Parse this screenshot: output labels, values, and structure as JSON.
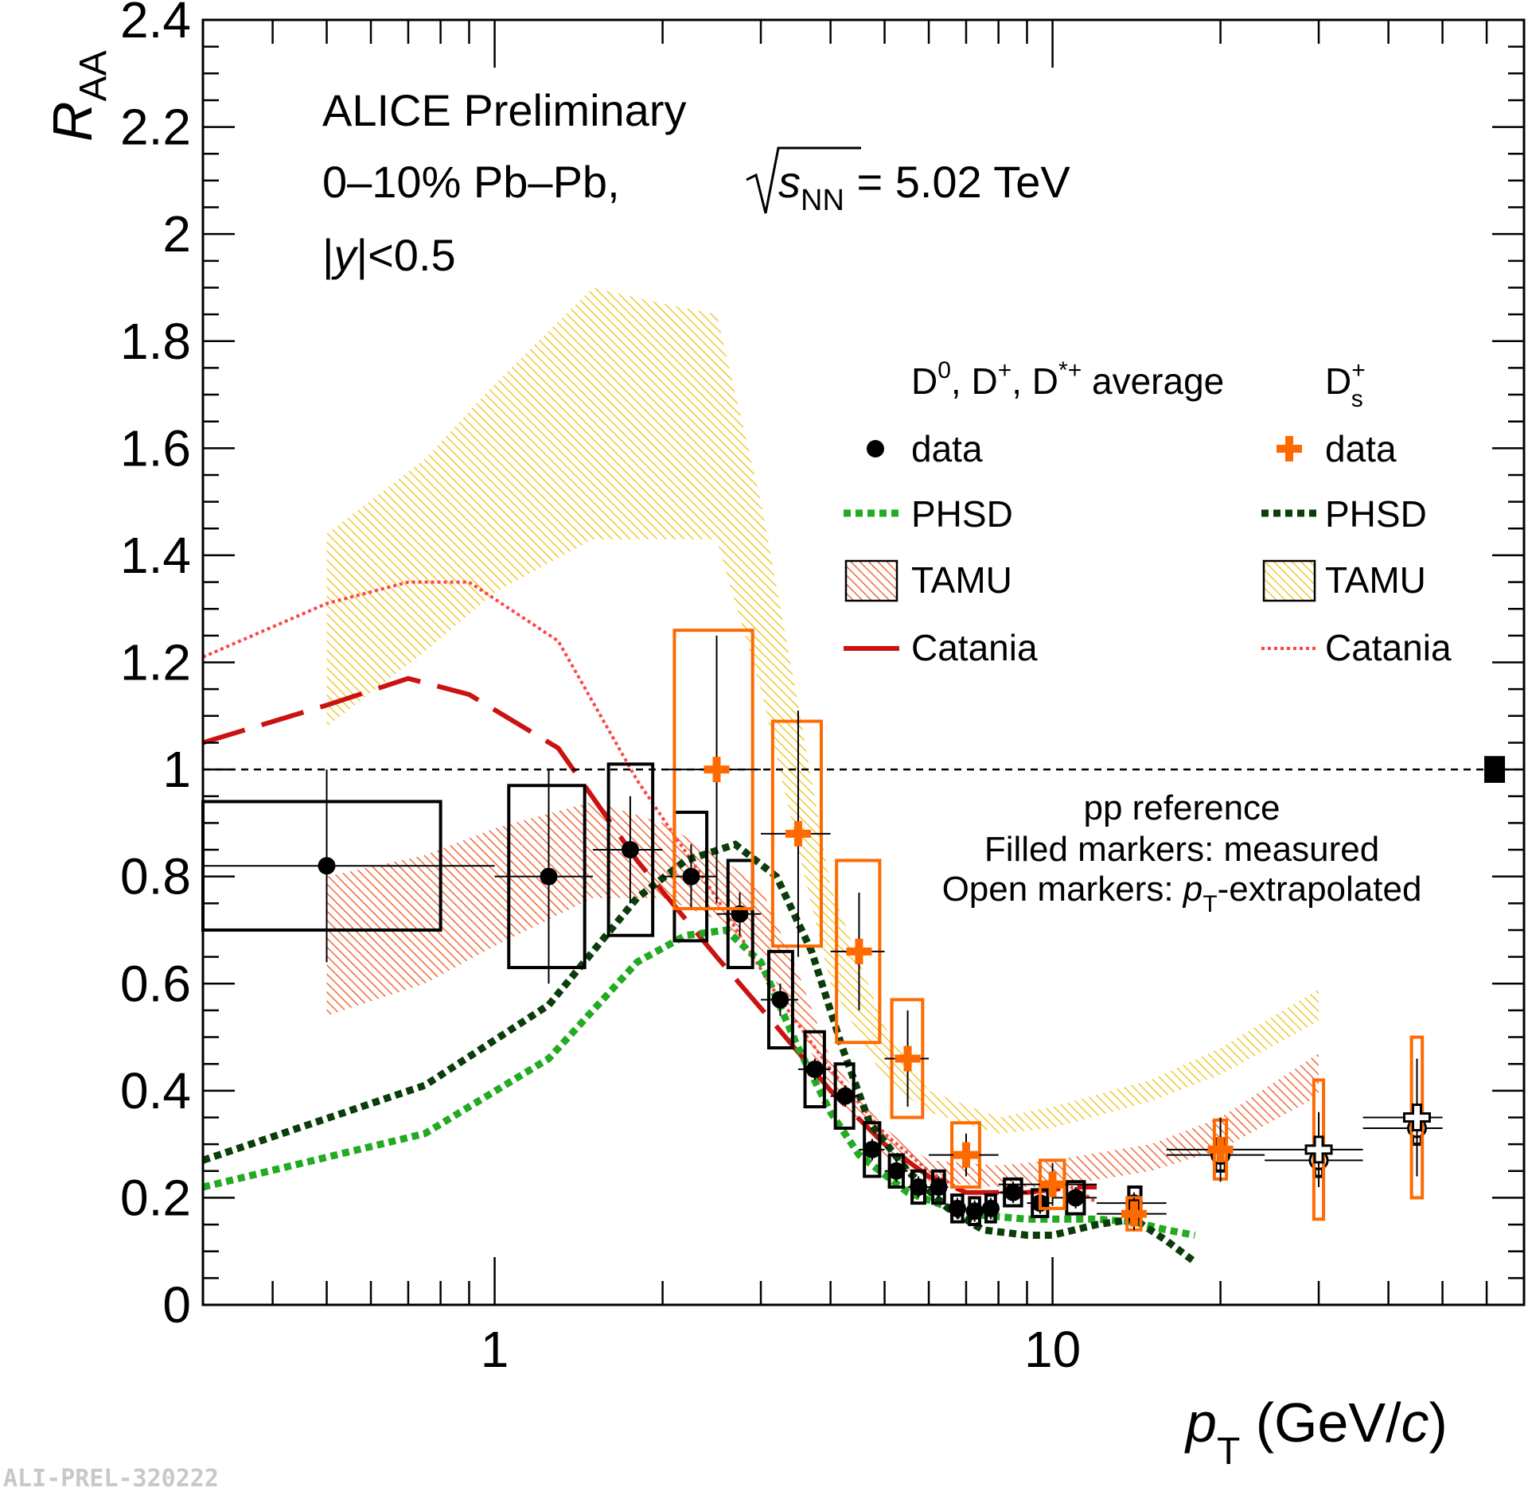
{
  "source_tag": "ALI-PREL-320222",
  "annotations": {
    "line1": "ALICE Preliminary",
    "line2_a": "0–10%  Pb–Pb, ",
    "line2_s": "s",
    "line2_nn": "NN",
    "line2_b": " = 5.02 TeV",
    "line3_a": "|",
    "line3_y": "y",
    "line3_b": "|<0.5",
    "note1": "pp reference",
    "note2": "Filled markers: measured",
    "note3_a": "Open markers: ",
    "note3_p": "p",
    "note3_T": "T",
    "note3_b": "-extrapolated"
  },
  "legend": {
    "header_left": {
      "a": "D",
      "sup1": "0",
      "b": ", D",
      "sup2": "+",
      "c": ", D",
      "sup3": "*+",
      "d": " average"
    },
    "header_right": {
      "a": "D",
      "sup": "+",
      "sub": "s"
    },
    "left_entries": [
      "data",
      "PHSD",
      "TAMU",
      "Catania"
    ],
    "right_entries": [
      "data",
      "PHSD",
      "TAMU",
      "Catania"
    ]
  },
  "colors": {
    "d_data": "#000000",
    "ds_data": "#ff6a00",
    "ds_syst": "#ff6a00",
    "phsd_d": "#22aa22",
    "phsd_ds": "#0a3d0a",
    "tamu_d": "#f06a3a",
    "tamu_ds": "#f0c830",
    "catania_d": "#cc1111",
    "catania_ds": "#ff4444"
  },
  "chart_data": {
    "type": "scatter",
    "title": "",
    "xlabel": {
      "p": "p",
      "T": "T",
      "unit": " (GeV/",
      "c": "c",
      "close": ")"
    },
    "ylabel": {
      "R": "R",
      "AA": "AA"
    },
    "xscale": "log",
    "xlim": [
      0.3,
      70
    ],
    "ylim": [
      0,
      2.4
    ],
    "x_tick_labels": [
      "1",
      "10"
    ],
    "x_tick_values": [
      1,
      10
    ],
    "y_tick_labels": [
      "0",
      "0.2",
      "0.4",
      "0.6",
      "0.8",
      "1",
      "1.2",
      "1.4",
      "1.6",
      "1.8",
      "2",
      "2.2",
      "2.4"
    ],
    "y_tick_values": [
      0,
      0.2,
      0.4,
      0.6,
      0.8,
      1.0,
      1.2,
      1.4,
      1.6,
      1.8,
      2.0,
      2.2,
      2.4
    ],
    "reference_line": 1.0,
    "series": [
      {
        "name": "D0, D+, D*+ average data",
        "marker": "circle",
        "points": [
          {
            "x": 0.5,
            "y": 0.82,
            "xlo": 0.3,
            "xhi": 1.0,
            "elo": 0.18,
            "ehi": 0.18,
            "s": 0.12,
            "bxlo": 0.3,
            "bxhi": 0.8
          },
          {
            "x": 1.25,
            "y": 0.8,
            "xlo": 1.0,
            "xhi": 1.5,
            "elo": 0.2,
            "ehi": 0.2,
            "s": 0.17,
            "bxlo": 1.06,
            "bxhi": 1.45
          },
          {
            "x": 1.75,
            "y": 0.85,
            "xlo": 1.5,
            "xhi": 2.0,
            "elo": 0.1,
            "ehi": 0.1,
            "s": 0.16,
            "bxlo": 1.6,
            "bxhi": 1.92
          },
          {
            "x": 2.25,
            "y": 0.8,
            "xlo": 2.0,
            "xhi": 2.5,
            "elo": 0.06,
            "ehi": 0.06,
            "s": 0.12,
            "bxlo": 2.1,
            "bxhi": 2.4
          },
          {
            "x": 2.75,
            "y": 0.73,
            "xlo": 2.5,
            "xhi": 3.0,
            "elo": 0.04,
            "ehi": 0.04,
            "s": 0.1,
            "bxlo": 2.62,
            "bxhi": 2.9
          },
          {
            "x": 3.25,
            "y": 0.57,
            "xlo": 3.0,
            "xhi": 3.5,
            "elo": 0.03,
            "ehi": 0.03,
            "s": 0.09,
            "bxlo": 3.1,
            "bxhi": 3.42
          },
          {
            "x": 3.75,
            "y": 0.44,
            "xlo": 3.5,
            "xhi": 4.0,
            "elo": 0.02,
            "ehi": 0.02,
            "s": 0.07,
            "bxlo": 3.6,
            "bxhi": 3.9
          },
          {
            "x": 4.25,
            "y": 0.39,
            "xlo": 4.0,
            "xhi": 4.5,
            "elo": 0.02,
            "ehi": 0.02,
            "s": 0.06,
            "bxlo": 4.08,
            "bxhi": 4.4
          },
          {
            "x": 4.75,
            "y": 0.29,
            "xlo": 4.5,
            "xhi": 5.0,
            "elo": 0.02,
            "ehi": 0.02,
            "s": 0.05,
            "bxlo": 4.6,
            "bxhi": 4.9
          },
          {
            "x": 5.25,
            "y": 0.25,
            "xlo": 5.0,
            "xhi": 5.5,
            "elo": 0.02,
            "ehi": 0.02,
            "s": 0.03,
            "bxlo": 5.1,
            "bxhi": 5.4
          },
          {
            "x": 5.75,
            "y": 0.22,
            "xlo": 5.5,
            "xhi": 6.0,
            "elo": 0.02,
            "ehi": 0.02,
            "s": 0.03,
            "bxlo": 5.6,
            "bxhi": 5.9
          },
          {
            "x": 6.25,
            "y": 0.22,
            "xlo": 6.0,
            "xhi": 6.5,
            "elo": 0.02,
            "ehi": 0.02,
            "s": 0.03,
            "bxlo": 6.1,
            "bxhi": 6.4
          },
          {
            "x": 6.75,
            "y": 0.18,
            "xlo": 6.5,
            "xhi": 7.0,
            "elo": 0.02,
            "ehi": 0.02,
            "s": 0.025,
            "bxlo": 6.6,
            "bxhi": 6.9
          },
          {
            "x": 7.25,
            "y": 0.175,
            "xlo": 7.0,
            "xhi": 7.5,
            "elo": 0.02,
            "ehi": 0.02,
            "s": 0.025,
            "bxlo": 7.1,
            "bxhi": 7.4
          },
          {
            "x": 7.75,
            "y": 0.18,
            "xlo": 7.5,
            "xhi": 8.0,
            "elo": 0.02,
            "ehi": 0.02,
            "s": 0.025,
            "bxlo": 7.6,
            "bxhi": 7.9
          },
          {
            "x": 8.5,
            "y": 0.21,
            "xlo": 8.0,
            "xhi": 9.0,
            "elo": 0.02,
            "ehi": 0.02,
            "s": 0.025,
            "bxlo": 8.2,
            "bxhi": 8.8
          },
          {
            "x": 9.5,
            "y": 0.19,
            "xlo": 9.0,
            "xhi": 10.0,
            "elo": 0.02,
            "ehi": 0.02,
            "s": 0.025,
            "bxlo": 9.2,
            "bxhi": 9.8
          },
          {
            "x": 11.0,
            "y": 0.2,
            "xlo": 10.0,
            "xhi": 12.0,
            "elo": 0.02,
            "ehi": 0.02,
            "s": 0.03,
            "bxlo": 10.6,
            "bxhi": 11.4
          },
          {
            "x": 14.0,
            "y": 0.19,
            "xlo": 12.0,
            "xhi": 16.0,
            "elo": 0.02,
            "ehi": 0.02,
            "s": 0.03,
            "bxlo": 13.7,
            "bxhi": 14.4
          },
          {
            "x": 20.0,
            "y": 0.28,
            "xlo": 16.0,
            "xhi": 24.0,
            "elo": 0.03,
            "ehi": 0.03,
            "s": 0.03,
            "bxlo": 19.6,
            "bxhi": 20.4,
            "open": true
          },
          {
            "x": 30.0,
            "y": 0.27,
            "xlo": 24.0,
            "xhi": 36.0,
            "elo": 0.03,
            "ehi": 0.03,
            "s": 0.03,
            "bxlo": 29.5,
            "bxhi": 30.5,
            "open": true
          },
          {
            "x": 45.0,
            "y": 0.33,
            "xlo": 36.0,
            "xhi": 50.0,
            "elo": 0.04,
            "ehi": 0.04,
            "s": 0.03,
            "bxlo": 44.2,
            "bxhi": 45.8,
            "open": true
          }
        ]
      },
      {
        "name": "Ds+ data",
        "marker": "cross",
        "points": [
          {
            "x": 2.5,
            "y": 1.0,
            "xlo": 2.0,
            "xhi": 3.0,
            "elo": 0.25,
            "ehi": 0.25,
            "s": 0.26,
            "bxlo": 2.1,
            "bxhi": 2.9
          },
          {
            "x": 3.5,
            "y": 0.88,
            "xlo": 3.0,
            "xhi": 4.0,
            "elo": 0.23,
            "ehi": 0.23,
            "s": 0.21,
            "bxlo": 3.15,
            "bxhi": 3.85
          },
          {
            "x": 4.5,
            "y": 0.66,
            "xlo": 4.0,
            "xhi": 5.0,
            "elo": 0.11,
            "ehi": 0.11,
            "s": 0.17,
            "bxlo": 4.1,
            "bxhi": 4.9
          },
          {
            "x": 5.5,
            "y": 0.46,
            "xlo": 5.0,
            "xhi": 6.0,
            "elo": 0.09,
            "ehi": 0.09,
            "s": 0.11,
            "bxlo": 5.15,
            "bxhi": 5.85
          },
          {
            "x": 7.0,
            "y": 0.28,
            "xlo": 6.0,
            "xhi": 8.0,
            "elo": 0.04,
            "ehi": 0.04,
            "s": 0.06,
            "bxlo": 6.6,
            "bxhi": 7.4
          },
          {
            "x": 10.0,
            "y": 0.225,
            "xlo": 8.0,
            "xhi": 12.0,
            "elo": 0.04,
            "ehi": 0.04,
            "s": 0.045,
            "bxlo": 9.5,
            "bxhi": 10.5
          },
          {
            "x": 14.0,
            "y": 0.17,
            "xlo": 12.0,
            "xhi": 16.0,
            "elo": 0.03,
            "ehi": 0.03,
            "s": 0.03,
            "bxlo": 13.6,
            "bxhi": 14.4
          },
          {
            "x": 20.0,
            "y": 0.29,
            "xlo": 16.0,
            "xhi": 24.0,
            "elo": 0.06,
            "ehi": 0.06,
            "s": 0.055,
            "bxlo": 19.5,
            "bxhi": 20.5
          },
          {
            "x": 30.0,
            "y": 0.29,
            "xlo": 24.0,
            "xhi": 36.0,
            "elo": 0.07,
            "ehi": 0.07,
            "s": 0.13,
            "bxlo": 29.4,
            "bxhi": 30.6,
            "open": true
          },
          {
            "x": 45.0,
            "y": 0.35,
            "xlo": 36.0,
            "xhi": 50.0,
            "elo": 0.11,
            "ehi": 0.11,
            "s": 0.15,
            "bxlo": 44.0,
            "bxhi": 46.0,
            "open": true
          }
        ]
      }
    ],
    "models": {
      "phsd_d": [
        [
          0.3,
          0.22
        ],
        [
          0.75,
          0.32
        ],
        [
          1.25,
          0.46
        ],
        [
          1.8,
          0.64
        ],
        [
          2.2,
          0.69
        ],
        [
          2.6,
          0.7
        ],
        [
          3.0,
          0.64
        ],
        [
          3.5,
          0.48
        ],
        [
          4.0,
          0.36
        ],
        [
          4.5,
          0.28
        ],
        [
          5.5,
          0.21
        ],
        [
          7.0,
          0.17
        ],
        [
          9.0,
          0.16
        ],
        [
          12.0,
          0.16
        ],
        [
          14.0,
          0.155
        ],
        [
          16.0,
          0.14
        ],
        [
          18.0,
          0.13
        ]
      ],
      "phsd_ds": [
        [
          0.3,
          0.27
        ],
        [
          0.75,
          0.41
        ],
        [
          1.25,
          0.56
        ],
        [
          1.8,
          0.76
        ],
        [
          2.2,
          0.83
        ],
        [
          2.7,
          0.86
        ],
        [
          3.2,
          0.8
        ],
        [
          3.7,
          0.66
        ],
        [
          4.2,
          0.48
        ],
        [
          4.7,
          0.34
        ],
        [
          5.5,
          0.25
        ],
        [
          6.5,
          0.18
        ],
        [
          7.5,
          0.14
        ],
        [
          9.0,
          0.13
        ],
        [
          10.0,
          0.13
        ],
        [
          12.0,
          0.15
        ],
        [
          14.0,
          0.16
        ],
        [
          16.0,
          0.12
        ],
        [
          18.0,
          0.08
        ]
      ],
      "catania_d": [
        [
          0.3,
          1.05
        ],
        [
          0.5,
          1.12
        ],
        [
          0.7,
          1.17
        ],
        [
          0.9,
          1.14
        ],
        [
          1.3,
          1.04
        ],
        [
          1.8,
          0.83
        ],
        [
          2.5,
          0.65
        ],
        [
          3.2,
          0.52
        ],
        [
          4.0,
          0.4
        ],
        [
          5.0,
          0.3
        ],
        [
          6.0,
          0.24
        ],
        [
          7.0,
          0.21
        ],
        [
          9.0,
          0.21
        ],
        [
          11.0,
          0.22
        ],
        [
          12.0,
          0.22
        ]
      ],
      "catania_ds": [
        [
          0.3,
          1.21
        ],
        [
          0.5,
          1.31
        ],
        [
          0.7,
          1.35
        ],
        [
          0.9,
          1.35
        ],
        [
          1.3,
          1.24
        ],
        [
          1.8,
          0.98
        ],
        [
          2.5,
          0.76
        ],
        [
          3.2,
          0.58
        ],
        [
          4.0,
          0.44
        ],
        [
          5.0,
          0.32
        ],
        [
          6.0,
          0.25
        ],
        [
          7.0,
          0.21
        ],
        [
          9.0,
          0.21
        ],
        [
          11.0,
          0.22
        ],
        [
          12.0,
          0.19
        ]
      ],
      "tamu_d_upper": [
        [
          0.5,
          0.8
        ],
        [
          0.75,
          0.84
        ],
        [
          1.0,
          0.89
        ],
        [
          1.5,
          0.94
        ],
        [
          2.0,
          0.9
        ],
        [
          2.5,
          0.84
        ],
        [
          3.0,
          0.78
        ],
        [
          3.5,
          0.62
        ],
        [
          4.0,
          0.46
        ],
        [
          5.0,
          0.33
        ],
        [
          6.0,
          0.27
        ],
        [
          8.0,
          0.26
        ],
        [
          10.0,
          0.27
        ],
        [
          15.0,
          0.3
        ],
        [
          20.0,
          0.35
        ],
        [
          30.0,
          0.47
        ]
      ],
      "tamu_d_lower": [
        [
          0.5,
          0.54
        ],
        [
          0.75,
          0.6
        ],
        [
          1.0,
          0.67
        ],
        [
          1.5,
          0.76
        ],
        [
          2.0,
          0.76
        ],
        [
          2.5,
          0.72
        ],
        [
          3.0,
          0.66
        ],
        [
          3.5,
          0.52
        ],
        [
          4.0,
          0.4
        ],
        [
          5.0,
          0.28
        ],
        [
          6.0,
          0.23
        ],
        [
          8.0,
          0.22
        ],
        [
          10.0,
          0.22
        ],
        [
          15.0,
          0.25
        ],
        [
          20.0,
          0.29
        ],
        [
          30.0,
          0.39
        ]
      ],
      "tamu_ds_upper": [
        [
          0.5,
          1.44
        ],
        [
          0.75,
          1.58
        ],
        [
          1.0,
          1.72
        ],
        [
          1.5,
          1.9
        ],
        [
          2.0,
          1.87
        ],
        [
          2.5,
          1.85
        ],
        [
          3.0,
          1.5
        ],
        [
          3.5,
          1.12
        ],
        [
          4.0,
          0.78
        ],
        [
          5.0,
          0.52
        ],
        [
          6.0,
          0.4
        ],
        [
          8.0,
          0.35
        ],
        [
          10.0,
          0.37
        ],
        [
          15.0,
          0.42
        ],
        [
          20.0,
          0.48
        ],
        [
          30.0,
          0.59
        ]
      ],
      "tamu_ds_lower": [
        [
          0.5,
          1.08
        ],
        [
          0.75,
          1.22
        ],
        [
          1.0,
          1.33
        ],
        [
          1.5,
          1.43
        ],
        [
          2.0,
          1.43
        ],
        [
          2.5,
          1.43
        ],
        [
          3.0,
          1.15
        ],
        [
          3.5,
          0.85
        ],
        [
          4.0,
          0.6
        ],
        [
          5.0,
          0.42
        ],
        [
          6.0,
          0.36
        ],
        [
          8.0,
          0.32
        ],
        [
          10.0,
          0.33
        ],
        [
          15.0,
          0.38
        ],
        [
          20.0,
          0.43
        ],
        [
          30.0,
          0.53
        ]
      ]
    },
    "normalization_box": {
      "x": 62.0,
      "y": 1.0,
      "half_height": 0.025
    }
  }
}
